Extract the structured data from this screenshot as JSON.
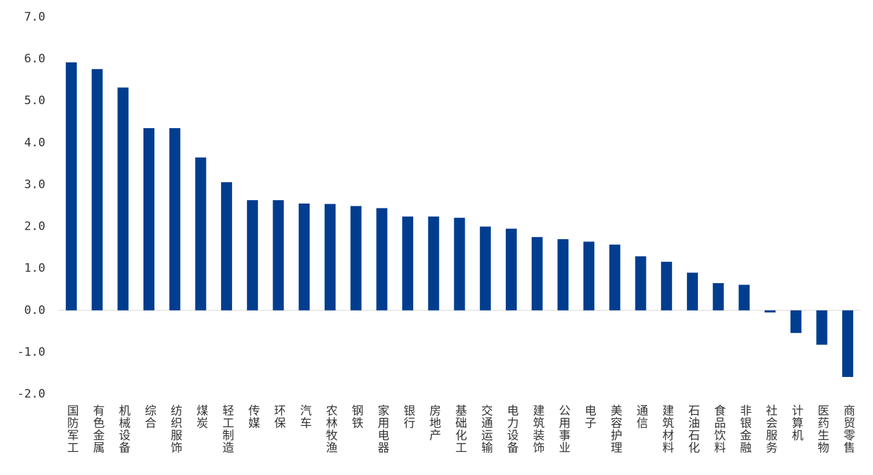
{
  "chart_data": {
    "type": "bar",
    "categories": [
      "国防军工",
      "有色金属",
      "机械设备",
      "综合",
      "纺织服饰",
      "煤炭",
      "轻工制造",
      "传媒",
      "环保",
      "汽车",
      "农林牧渔",
      "钢铁",
      "家用电器",
      "银行",
      "房地产",
      "基础化工",
      "交通运输",
      "电力设备",
      "建筑装饰",
      "公用事业",
      "电子",
      "美容护理",
      "通信",
      "建筑材料",
      "石油石化",
      "食品饮料",
      "非银金融",
      "社会服务",
      "计算机",
      "医药生物",
      "商贸零售"
    ],
    "values": [
      5.92,
      5.76,
      5.32,
      4.35,
      4.35,
      3.65,
      3.06,
      2.63,
      2.63,
      2.55,
      2.54,
      2.49,
      2.44,
      2.24,
      2.24,
      2.21,
      2.0,
      1.95,
      1.75,
      1.7,
      1.64,
      1.57,
      1.29,
      1.16,
      0.9,
      0.65,
      0.61,
      -0.05,
      -0.54,
      -0.82,
      -1.59
    ],
    "color": "#003d8f",
    "ylim": [
      -2,
      7
    ],
    "yticks": [
      {
        "value": -2,
        "label": "-2.0"
      },
      {
        "value": -1,
        "label": "-1.0"
      },
      {
        "value": 0,
        "label": "0.0"
      },
      {
        "value": 1,
        "label": "1.0"
      },
      {
        "value": 2,
        "label": "2.0"
      },
      {
        "value": 3,
        "label": "3.0"
      },
      {
        "value": 4,
        "label": "4.0"
      },
      {
        "value": 5,
        "label": "5.0"
      },
      {
        "value": 6,
        "label": "6.0"
      },
      {
        "value": 7,
        "label": "7.0"
      }
    ],
    "grid": false
  }
}
